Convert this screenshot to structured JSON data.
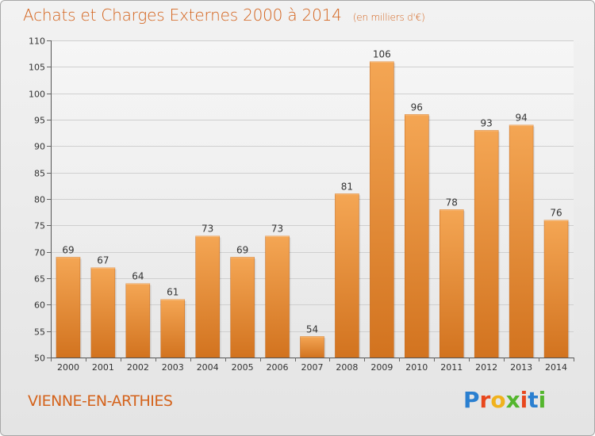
{
  "header": {
    "title": "Achats et Charges Externes 2000 à 2014",
    "unit": "(en milliers d'€)"
  },
  "footer": {
    "commune": "VIENNE-EN-ARTHIES",
    "logo": "Proxiti"
  },
  "colors": {
    "title": "#d4631c",
    "bar_top": "#f4a654",
    "bar_bottom": "#d2731f",
    "logo": [
      "#2a7fd0",
      "#e8471d",
      "#f0b21d",
      "#54b62e",
      "#e8471d",
      "#2a7fd0",
      "#54b62e"
    ]
  },
  "chart_data": {
    "type": "bar",
    "categories": [
      "2000",
      "2001",
      "2002",
      "2003",
      "2004",
      "2005",
      "2006",
      "2007",
      "2008",
      "2009",
      "2010",
      "2011",
      "2012",
      "2013",
      "2014"
    ],
    "values": [
      69,
      67,
      64,
      61,
      73,
      69,
      73,
      54,
      81,
      106,
      96,
      78,
      93,
      94,
      76
    ],
    "title": "Achats et Charges Externes 2000 à 2014",
    "xlabel": "",
    "ylabel": "",
    "ylim": [
      50,
      110
    ],
    "yticks": [
      50,
      55,
      60,
      65,
      70,
      75,
      80,
      85,
      90,
      95,
      100,
      105,
      110
    ],
    "grid": true
  }
}
